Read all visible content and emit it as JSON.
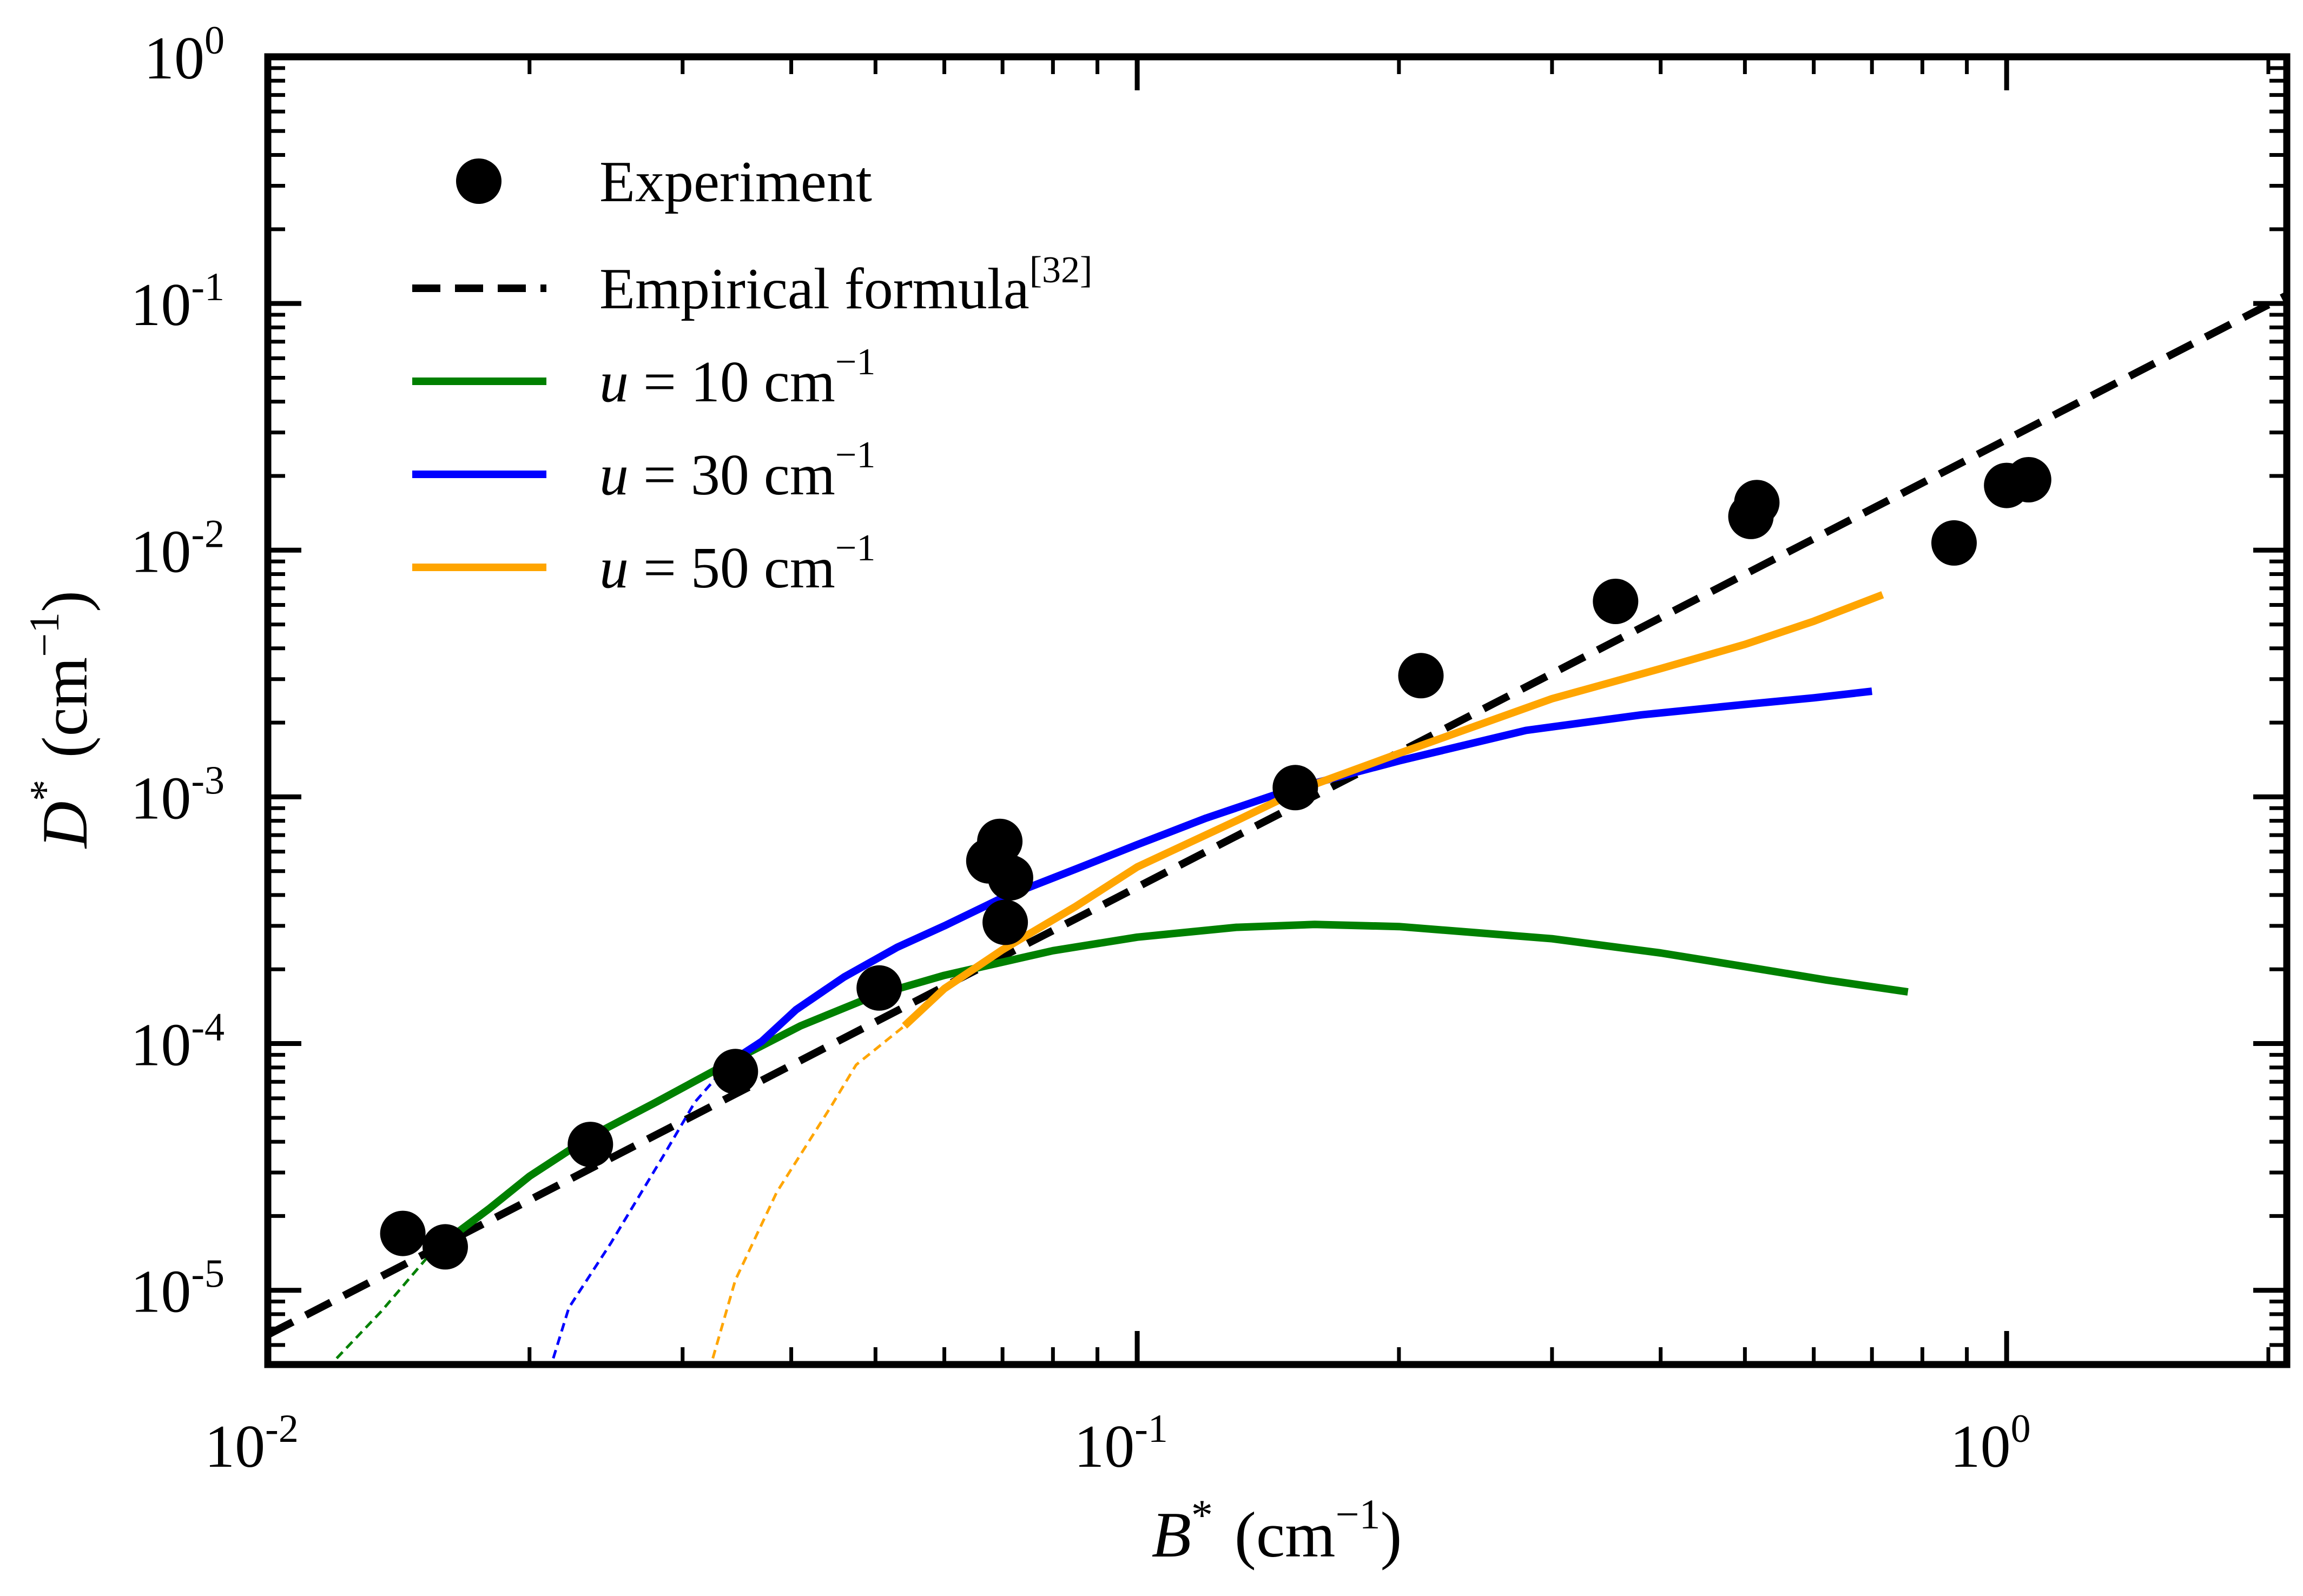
{
  "chart_data": {
    "type": "line",
    "title": "",
    "xscale": "log",
    "yscale": "log",
    "xlim": [
      0.01,
      2.1
    ],
    "ylim": [
      5e-06,
      1
    ],
    "xlabel": {
      "symbol": "B",
      "sup": "*",
      "unit": "(cm",
      "unit_exp": "−1",
      "close": ")"
    },
    "ylabel": {
      "symbol": "D",
      "sup": "*",
      "unit": "(cm",
      "unit_exp": "−1",
      "close": ")"
    },
    "x_ticks": [
      {
        "value": 0.01,
        "base": "10",
        "exp": "-2"
      },
      {
        "value": 0.1,
        "base": "10",
        "exp": "-1"
      },
      {
        "value": 1,
        "base": "10",
        "exp": "0"
      }
    ],
    "y_ticks": [
      {
        "value": 1e-05,
        "base": "10",
        "exp": "-5"
      },
      {
        "value": 0.0001,
        "base": "10",
        "exp": "-4"
      },
      {
        "value": 0.001,
        "base": "10",
        "exp": "-3"
      },
      {
        "value": 0.01,
        "base": "10",
        "exp": "-2"
      },
      {
        "value": 0.1,
        "base": "10",
        "exp": "-1"
      },
      {
        "value": 1,
        "base": "10",
        "exp": "0"
      }
    ],
    "legend_position": "top-left",
    "legend": [
      {
        "label": "Experiment",
        "kind": "marker",
        "color": "#000000"
      },
      {
        "label": "Empirical formula",
        "sup": "[32]",
        "kind": "dashed",
        "color": "#000000"
      },
      {
        "label_var": "u",
        "label_rest": " = 10 cm",
        "label_exp": "−1",
        "kind": "line",
        "color": "#008000"
      },
      {
        "label_var": "u",
        "label_rest": " = 30 cm",
        "label_exp": "−1",
        "kind": "line",
        "color": "#0000ff"
      },
      {
        "label_var": "u",
        "label_rest": " = 50 cm",
        "label_exp": "−1",
        "kind": "line",
        "color": "#ffa500"
      }
    ],
    "experiment": {
      "name": "Experiment",
      "color": "#000000",
      "points": [
        [
          0.0143,
          1.7e-05
        ],
        [
          0.016,
          1.5e-05
        ],
        [
          0.0235,
          3.9e-05
        ],
        [
          0.0345,
          7.7e-05
        ],
        [
          0.0505,
          0.000168
        ],
        [
          0.0675,
          0.00055
        ],
        [
          0.0695,
          0.00066
        ],
        [
          0.0715,
          0.00047
        ],
        [
          0.0705,
          0.00031
        ],
        [
          0.152,
          0.00109
        ],
        [
          0.212,
          0.0031
        ],
        [
          0.355,
          0.0062
        ],
        [
          0.508,
          0.0137
        ],
        [
          0.516,
          0.0156
        ],
        [
          0.87,
          0.0107
        ],
        [
          1.0,
          0.0183
        ],
        [
          1.06,
          0.0193
        ]
      ]
    },
    "series": [
      {
        "name": "Empirical formula",
        "style": "dashed",
        "color": "#000000",
        "points": [
          [
            0.01,
            6.6e-06
          ],
          [
            2.1,
            0.108
          ]
        ]
      },
      {
        "name": "u = 10 cm^-1",
        "color": "#008000",
        "points": [
          [
            0.0155,
            1.45e-05
          ],
          [
            0.018,
            2.15e-05
          ],
          [
            0.02,
            2.9e-05
          ],
          [
            0.0235,
            4.2e-05
          ],
          [
            0.028,
            5.8e-05
          ],
          [
            0.034,
            8.4e-05
          ],
          [
            0.041,
            0.000118
          ],
          [
            0.05,
            0.000157
          ],
          [
            0.06,
            0.000189
          ],
          [
            0.08,
            0.000238
          ],
          [
            0.1,
            0.00027
          ],
          [
            0.13,
            0.000296
          ],
          [
            0.16,
            0.000304
          ],
          [
            0.2,
            0.000298
          ],
          [
            0.3,
            0.000266
          ],
          [
            0.4,
            0.000233
          ],
          [
            0.5,
            0.000205
          ],
          [
            0.62,
            0.000181
          ],
          [
            0.77,
            0.000162
          ]
        ],
        "extrapolation": [
          [
            0.012,
            5.3e-06
          ],
          [
            0.0135,
            8.2e-06
          ],
          [
            0.0155,
            1.45e-05
          ]
        ]
      },
      {
        "name": "u = 30 cm^-1",
        "color": "#0000ff",
        "points": [
          [
            0.034,
            8.4e-05
          ],
          [
            0.037,
            0.000102
          ],
          [
            0.0405,
            0.000137
          ],
          [
            0.046,
            0.000186
          ],
          [
            0.053,
            0.000246
          ],
          [
            0.06,
            0.0003
          ],
          [
            0.07,
            0.00039
          ],
          [
            0.085,
            0.00051
          ],
          [
            0.1,
            0.00064
          ],
          [
            0.12,
            0.00082
          ],
          [
            0.15,
            0.00107
          ],
          [
            0.2,
            0.0014
          ],
          [
            0.28,
            0.00186
          ],
          [
            0.38,
            0.00215
          ],
          [
            0.5,
            0.00237
          ],
          [
            0.6,
            0.00252
          ],
          [
            0.7,
            0.00268
          ]
        ],
        "extrapolation": [
          [
            0.0213,
            5.3e-06
          ],
          [
            0.0222,
            8.5e-06
          ],
          [
            0.0248,
            1.55e-05
          ],
          [
            0.0285,
            3.5e-05
          ],
          [
            0.031,
            5.8e-05
          ],
          [
            0.034,
            8.4e-05
          ]
        ]
      },
      {
        "name": "u = 50 cm^-1",
        "color": "#ffa500",
        "points": [
          [
            0.054,
            0.000118
          ],
          [
            0.06,
            0.000167
          ],
          [
            0.07,
            0.00024
          ],
          [
            0.085,
            0.00036
          ],
          [
            0.1,
            0.00052
          ],
          [
            0.13,
            0.0008
          ],
          [
            0.155,
            0.00108
          ],
          [
            0.2,
            0.0015
          ],
          [
            0.3,
            0.0025
          ],
          [
            0.4,
            0.00331
          ],
          [
            0.5,
            0.00415
          ],
          [
            0.6,
            0.00515
          ],
          [
            0.72,
            0.0066
          ]
        ],
        "extrapolation": [
          [
            0.0325,
            5.3e-06
          ],
          [
            0.0345,
            1.1e-05
          ],
          [
            0.0385,
            2.5e-05
          ],
          [
            0.0445,
            5.6e-05
          ],
          [
            0.0475,
            8.2e-05
          ],
          [
            0.054,
            0.000118
          ]
        ]
      }
    ]
  }
}
